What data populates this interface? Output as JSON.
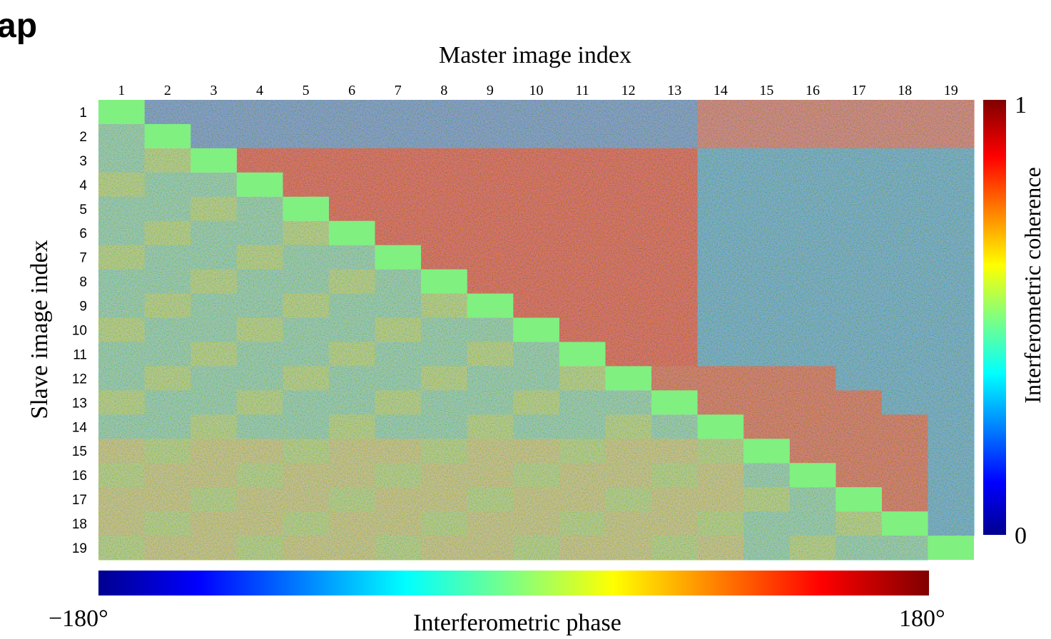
{
  "title": "ap",
  "x_axis": {
    "label": "Master image index",
    "ticks": [
      "1",
      "2",
      "3",
      "4",
      "5",
      "6",
      "7",
      "8",
      "9",
      "10",
      "11",
      "12",
      "13",
      "14",
      "15",
      "16",
      "17",
      "18",
      "19"
    ]
  },
  "y_axis": {
    "label": "Slave image index",
    "ticks": [
      "1",
      "2",
      "3",
      "4",
      "5",
      "6",
      "7",
      "8",
      "9",
      "10",
      "11",
      "12",
      "13",
      "14",
      "15",
      "16",
      "17",
      "18",
      "19"
    ]
  },
  "coherence_bar": {
    "label": "Interferometric coherence",
    "max": "1",
    "min": "0"
  },
  "phase_bar": {
    "label": "Interferometric phase",
    "min": "−180°",
    "max": "180°"
  }
}
